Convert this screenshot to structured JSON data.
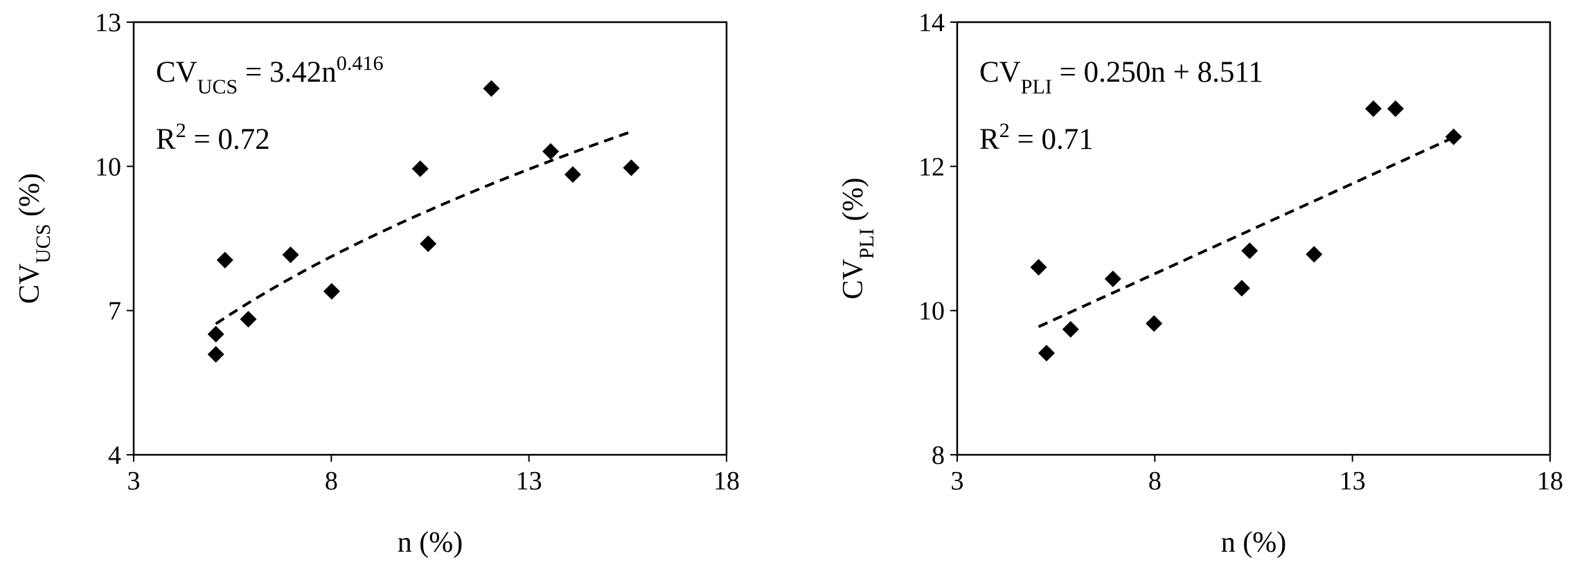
{
  "chart_data": [
    {
      "type": "scatter",
      "x_label": "n (%)",
      "y_label": [
        {
          "text": "CV"
        },
        {
          "text": "UCS",
          "sub": true
        },
        {
          "text": " (%)"
        }
      ],
      "equation": [
        {
          "text": "CV"
        },
        {
          "text": "UCS",
          "sub": true
        },
        {
          "text": " = 3.42n"
        },
        {
          "text": "0.416",
          "sup": true
        }
      ],
      "r_squared": [
        {
          "text": "R"
        },
        {
          "text": "2",
          "sup": true
        },
        {
          "text": " = 0.72"
        }
      ],
      "x": [
        5.08,
        5.08,
        5.31,
        5.9,
        6.97,
        8.01,
        10.25,
        10.45,
        12.05,
        13.55,
        14.11,
        15.59
      ],
      "values": [
        6.51,
        6.09,
        8.05,
        6.82,
        8.16,
        7.4,
        9.95,
        8.39,
        11.62,
        10.31,
        9.83,
        9.97
      ],
      "color": "#000000",
      "trendline": {
        "kind": "power",
        "a": 3.42,
        "b": 0.416,
        "xlim": [
          5.08,
          15.59
        ]
      },
      "xlim": [
        3,
        18
      ],
      "xticks": [
        3,
        8,
        13,
        18
      ],
      "ylim": [
        4,
        13
      ],
      "yticks": [
        4,
        7,
        10,
        13
      ]
    },
    {
      "type": "scatter",
      "x_label": "n (%)",
      "y_label": [
        {
          "text": "CV"
        },
        {
          "text": "PLI",
          "sub": true
        },
        {
          "text": " (%)"
        }
      ],
      "equation": [
        {
          "text": "CV"
        },
        {
          "text": "PLI",
          "sub": true
        },
        {
          "text": " = 0.250n + 8.511"
        }
      ],
      "r_squared": [
        {
          "text": "R"
        },
        {
          "text": "2",
          "sup": true
        },
        {
          "text": " = 0.71"
        }
      ],
      "x": [
        5.06,
        5.26,
        5.87,
        6.94,
        7.98,
        10.2,
        10.4,
        12.03,
        13.53,
        14.09,
        15.56
      ],
      "values": [
        10.6,
        9.41,
        9.74,
        10.44,
        9.82,
        10.31,
        10.83,
        10.78,
        12.8,
        12.8,
        12.41
      ],
      "color": "#000000",
      "trendline": {
        "kind": "linear",
        "a": 0.25,
        "b": 8.511,
        "xlim": [
          5.06,
          15.56
        ]
      },
      "xlim": [
        3,
        18
      ],
      "xticks": [
        3,
        8,
        13,
        18
      ],
      "ylim": [
        8,
        14
      ],
      "yticks": [
        8,
        10,
        12,
        14
      ]
    }
  ]
}
